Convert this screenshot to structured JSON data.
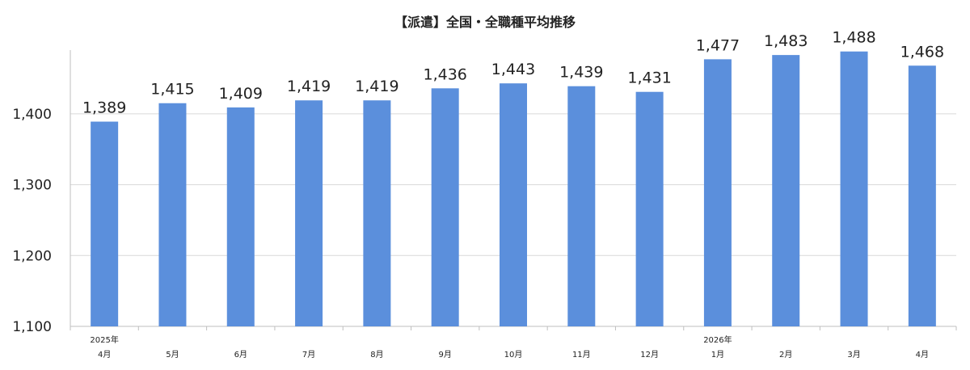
{
  "chart_data": {
    "type": "bar",
    "title": "【派遣】全国・全職種平均推移",
    "categories": [
      [
        "2025年",
        "4月"
      ],
      [
        "5月"
      ],
      [
        "6月"
      ],
      [
        "7月"
      ],
      [
        "8月"
      ],
      [
        "9月"
      ],
      [
        "10月"
      ],
      [
        "11月"
      ],
      [
        "12月"
      ],
      [
        "2026年",
        "1月"
      ],
      [
        "2月"
      ],
      [
        "3月"
      ],
      [
        "4月"
      ]
    ],
    "values": [
      1389,
      1415,
      1409,
      1419,
      1419,
      1436,
      1443,
      1439,
      1431,
      1477,
      1483,
      1488,
      1468
    ],
    "value_labels": [
      "1,389",
      "1,415",
      "1,409",
      "1,419",
      "1,419",
      "1,436",
      "1,443",
      "1,439",
      "1,431",
      "1,477",
      "1,483",
      "1,488",
      "1,468"
    ],
    "yticks": [
      1100,
      1200,
      1300,
      1400
    ],
    "ytick_labels": [
      "1,100",
      "1,200",
      "1,300",
      "1,400"
    ],
    "ylim": [
      1100,
      1500
    ],
    "xlabel": "",
    "ylabel": "",
    "grid": true,
    "legend": "none",
    "colors": {
      "bar": "#5b8fdc",
      "grid": "#d9d9d9",
      "axis": "#bfbfbf"
    }
  }
}
